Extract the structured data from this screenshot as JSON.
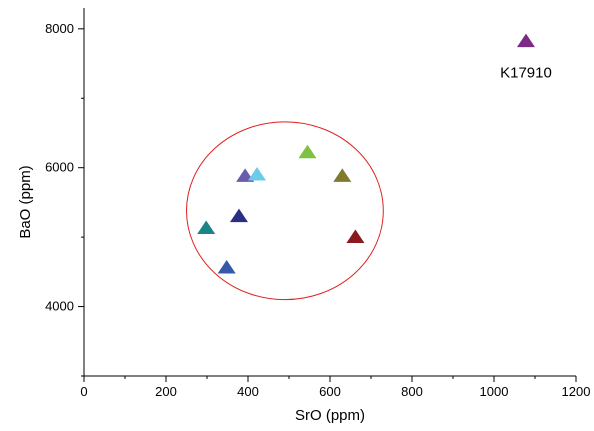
{
  "chart_data": {
    "type": "scatter",
    "title": "",
    "xlabel": "SrO (ppm)",
    "ylabel": "BaO (ppm)",
    "xlim": [
      0,
      1200
    ],
    "ylim": [
      3000,
      8300
    ],
    "x_ticks": [
      0,
      200,
      400,
      600,
      800,
      1000,
      1200
    ],
    "y_ticks": [
      4000,
      6000,
      8000
    ],
    "marker": "triangle",
    "grid": false,
    "legend": "none",
    "points": [
      {
        "x": 1078,
        "y": 7820,
        "color": "#7b2a86"
      },
      {
        "x": 545,
        "y": 6220,
        "color": "#7dc242"
      },
      {
        "x": 393,
        "y": 5880,
        "color": "#6a5cad"
      },
      {
        "x": 422,
        "y": 5900,
        "color": "#6ccbe8"
      },
      {
        "x": 630,
        "y": 5880,
        "color": "#7f7a2e"
      },
      {
        "x": 378,
        "y": 5300,
        "color": "#2b2e83"
      },
      {
        "x": 298,
        "y": 5130,
        "color": "#1b8487"
      },
      {
        "x": 662,
        "y": 5000,
        "color": "#8a1a1d"
      },
      {
        "x": 348,
        "y": 4560,
        "color": "#3558a8"
      }
    ],
    "annotations": [
      {
        "text": "K17910",
        "x": 1078,
        "y": 7820
      }
    ],
    "highlight_ellipse": {
      "cx": 490,
      "cy": 5380,
      "rx": 240,
      "ry": 1280,
      "stroke": "#e02020"
    }
  }
}
